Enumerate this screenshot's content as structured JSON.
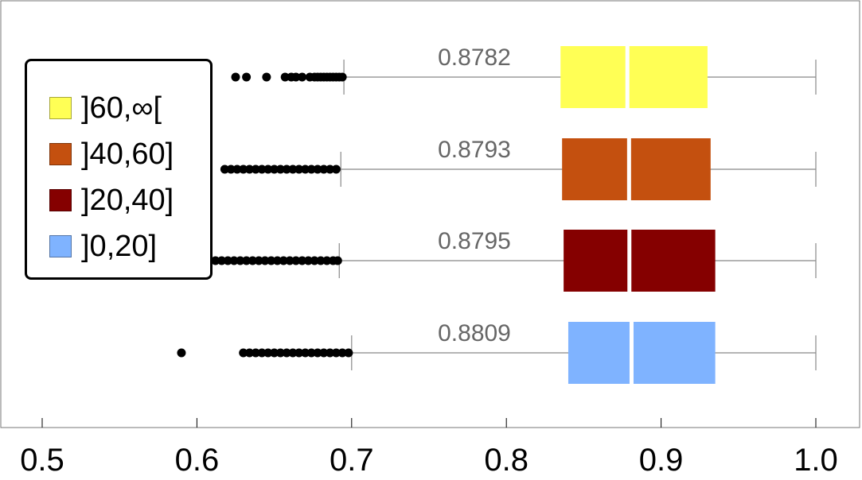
{
  "chart_data": {
    "type": "boxplot",
    "orientation": "horizontal",
    "xlim": [
      0.5,
      1.0
    ],
    "xticks": [
      "0.5",
      "0.6",
      "0.7",
      "0.8",
      "0.9",
      "1.0"
    ],
    "legend_position": "left",
    "series": [
      {
        "name": "]60,∞[",
        "color": "#FFFF55",
        "median": 0.8782,
        "median_label": "0.8782",
        "q1": 0.835,
        "q3": 0.93,
        "whisker_low": 0.695,
        "whisker_high": 1.0,
        "outliers": [
          0.625,
          0.632,
          0.645,
          0.657,
          0.661,
          0.664,
          0.668,
          0.673,
          0.676,
          0.678,
          0.68,
          0.682,
          0.684,
          0.686,
          0.688,
          0.69,
          0.692,
          0.694
        ]
      },
      {
        "name": "]40,60]",
        "color": "#C4500F",
        "median": 0.8793,
        "median_label": "0.8793",
        "q1": 0.836,
        "q3": 0.932,
        "whisker_low": 0.693,
        "whisker_high": 1.0,
        "outliers": [
          0.618,
          0.622,
          0.626,
          0.63,
          0.634,
          0.638,
          0.642,
          0.646,
          0.65,
          0.654,
          0.658,
          0.662,
          0.666,
          0.67,
          0.674,
          0.678,
          0.682,
          0.686,
          0.69
        ]
      },
      {
        "name": "]20,40]",
        "color": "#850000",
        "median": 0.8795,
        "median_label": "0.8795",
        "q1": 0.837,
        "q3": 0.935,
        "whisker_low": 0.692,
        "whisker_high": 1.0,
        "outliers": [
          0.612,
          0.616,
          0.62,
          0.624,
          0.628,
          0.632,
          0.636,
          0.64,
          0.644,
          0.648,
          0.652,
          0.656,
          0.66,
          0.664,
          0.668,
          0.672,
          0.676,
          0.68,
          0.684,
          0.688,
          0.691
        ]
      },
      {
        "name": "]0,20]",
        "color": "#7FB3FF",
        "median": 0.8809,
        "median_label": "0.8809",
        "q1": 0.84,
        "q3": 0.935,
        "whisker_low": 0.7,
        "whisker_high": 1.0,
        "outliers": [
          0.59,
          0.63,
          0.634,
          0.638,
          0.642,
          0.646,
          0.65,
          0.654,
          0.658,
          0.662,
          0.666,
          0.67,
          0.674,
          0.678,
          0.682,
          0.686,
          0.69,
          0.694,
          0.698
        ]
      }
    ]
  },
  "legend": {
    "items": [
      {
        "label": "]60,∞[",
        "color": "#FFFF55"
      },
      {
        "label": "]40,60]",
        "color": "#C4500F"
      },
      {
        "label": "]20,40]",
        "color": "#850000"
      },
      {
        "label": "]0,20]",
        "color": "#7FB3FF"
      }
    ]
  }
}
